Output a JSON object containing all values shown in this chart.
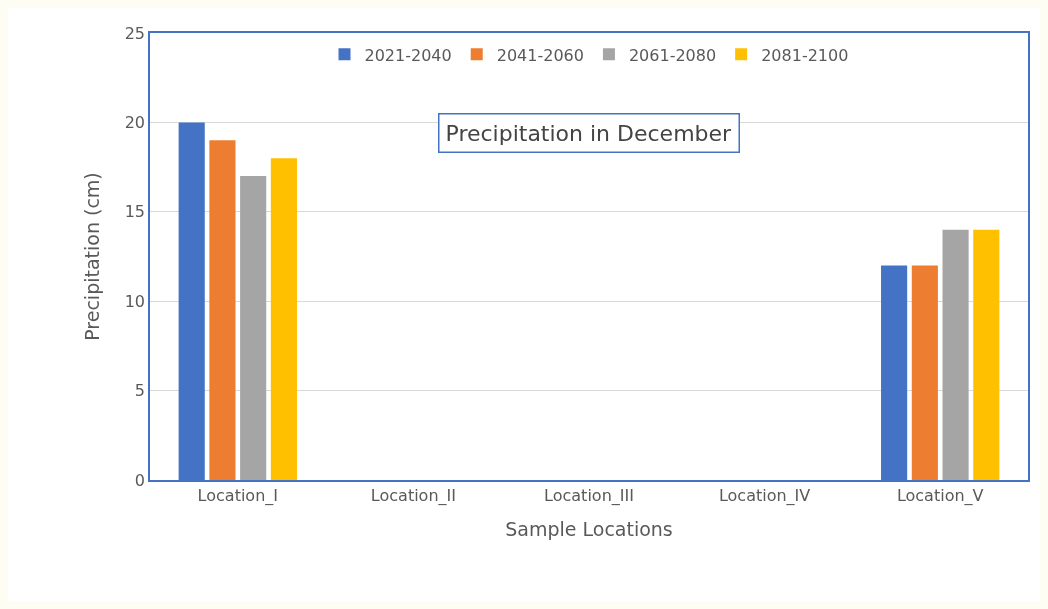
{
  "chart_data": {
    "type": "bar",
    "title": "Precipitation in December",
    "xlabel": "Sample Locations",
    "ylabel": "Precipitation (cm)",
    "categories": [
      "Location_I",
      "Location_II",
      "Location_III",
      "Location_IV",
      "Location_V"
    ],
    "series": [
      {
        "name": "2021-2040",
        "color": "#4472c4",
        "values": [
          20,
          null,
          null,
          null,
          12
        ]
      },
      {
        "name": "2041-2060",
        "color": "#ed7d31",
        "values": [
          19,
          null,
          null,
          null,
          12
        ]
      },
      {
        "name": "2061-2080",
        "color": "#a5a5a5",
        "values": [
          17,
          null,
          null,
          null,
          14
        ]
      },
      {
        "name": "2081-2100",
        "color": "#ffc000",
        "values": [
          18,
          null,
          null,
          null,
          14
        ]
      }
    ],
    "ylim": [
      0,
      25
    ],
    "yticks": [
      0,
      5,
      10,
      15,
      20,
      25
    ],
    "grid": "y",
    "legend": "top"
  }
}
